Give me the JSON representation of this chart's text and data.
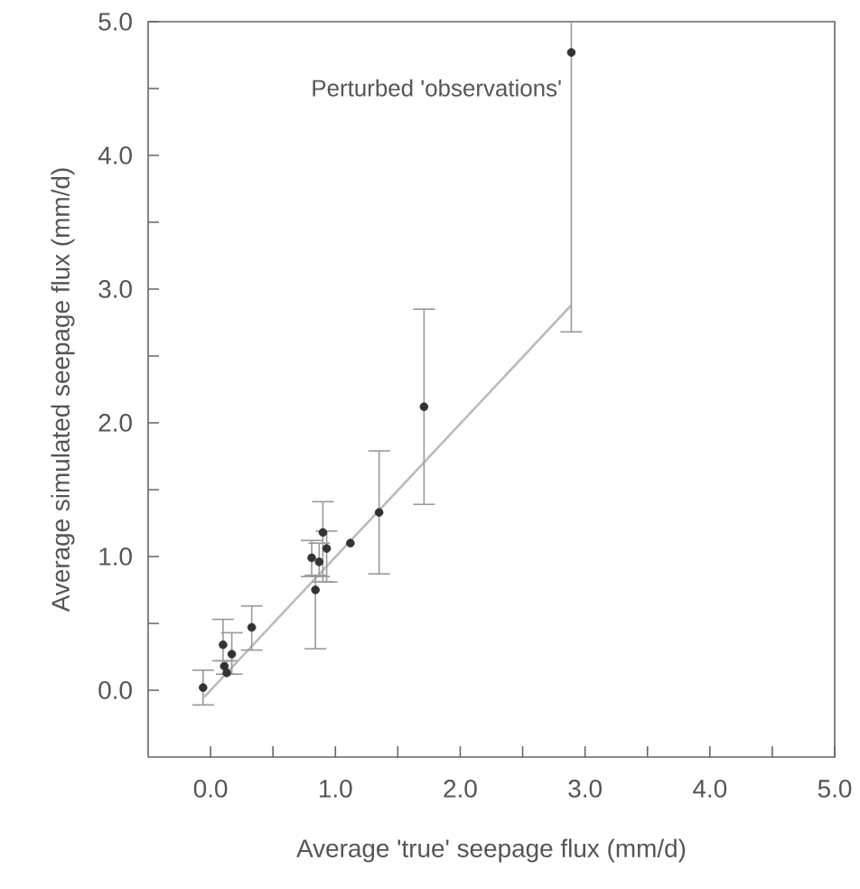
{
  "chart_data": {
    "type": "scatter",
    "xlabel": "Average 'true' seepage flux (mm/d)",
    "ylabel": "Average simulated seepage flux (mm/d)",
    "annotations": [
      "Perturbed 'observations'"
    ],
    "xlim": [
      -0.5,
      5.0
    ],
    "ylim": [
      -0.5,
      5.0
    ],
    "xticks": [
      {
        "value": 0,
        "label": "0.0"
      },
      {
        "value": 0.5,
        "label": null
      },
      {
        "value": 1,
        "label": "1.0"
      },
      {
        "value": 1.5,
        "label": null
      },
      {
        "value": 2,
        "label": "2.0"
      },
      {
        "value": 2.5,
        "label": null
      },
      {
        "value": 3,
        "label": "3.0"
      },
      {
        "value": 3.5,
        "label": null
      },
      {
        "value": 4,
        "label": "4.0"
      },
      {
        "value": 4.5,
        "label": null
      },
      {
        "value": 5,
        "label": "5.0"
      }
    ],
    "yticks": [
      {
        "value": 0,
        "label": "0.0"
      },
      {
        "value": 0.5,
        "label": null
      },
      {
        "value": 1,
        "label": "1.0"
      },
      {
        "value": 1.5,
        "label": null
      },
      {
        "value": 2,
        "label": "2.0"
      },
      {
        "value": 2.5,
        "label": null
      },
      {
        "value": 3,
        "label": "3.0"
      },
      {
        "value": 3.5,
        "label": null
      },
      {
        "value": 4,
        "label": "4.0"
      },
      {
        "value": 4.5,
        "label": null
      },
      {
        "value": 5,
        "label": "5.0"
      }
    ],
    "grid": false,
    "series": [
      {
        "type": "line",
        "marker": "none",
        "color": "#bbbbbb",
        "x": [
          -0.05,
          2.89
        ],
        "values": [
          -0.05,
          2.88
        ]
      },
      {
        "marker": "circle",
        "color": "#333333",
        "x": [
          -0.06,
          0.1,
          0.11,
          0.13,
          0.17,
          0.33,
          0.81,
          0.84,
          0.9,
          0.87,
          0.93,
          1.12,
          1.35,
          1.71,
          2.89
        ],
        "values": [
          0.02,
          0.34,
          0.18,
          0.13,
          0.27,
          0.47,
          0.99,
          0.75,
          1.18,
          0.96,
          1.06,
          1.1,
          1.33,
          2.12,
          4.77
        ],
        "errors": [
          [
            -0.11,
            0.15
          ],
          [
            0.22,
            0.53
          ],
          null,
          [
            0.12,
            0.22
          ],
          [
            0.12,
            0.43
          ],
          [
            0.3,
            0.63
          ],
          [
            0.85,
            1.12
          ],
          [
            0.31,
            0.86
          ],
          [
            0.81,
            1.41
          ],
          [
            0.85,
            1.1
          ],
          [
            0.81,
            1.19
          ],
          null,
          [
            0.87,
            1.79
          ],
          [
            1.39,
            2.85
          ],
          [
            2.68,
            5.0
          ]
        ]
      }
    ]
  }
}
